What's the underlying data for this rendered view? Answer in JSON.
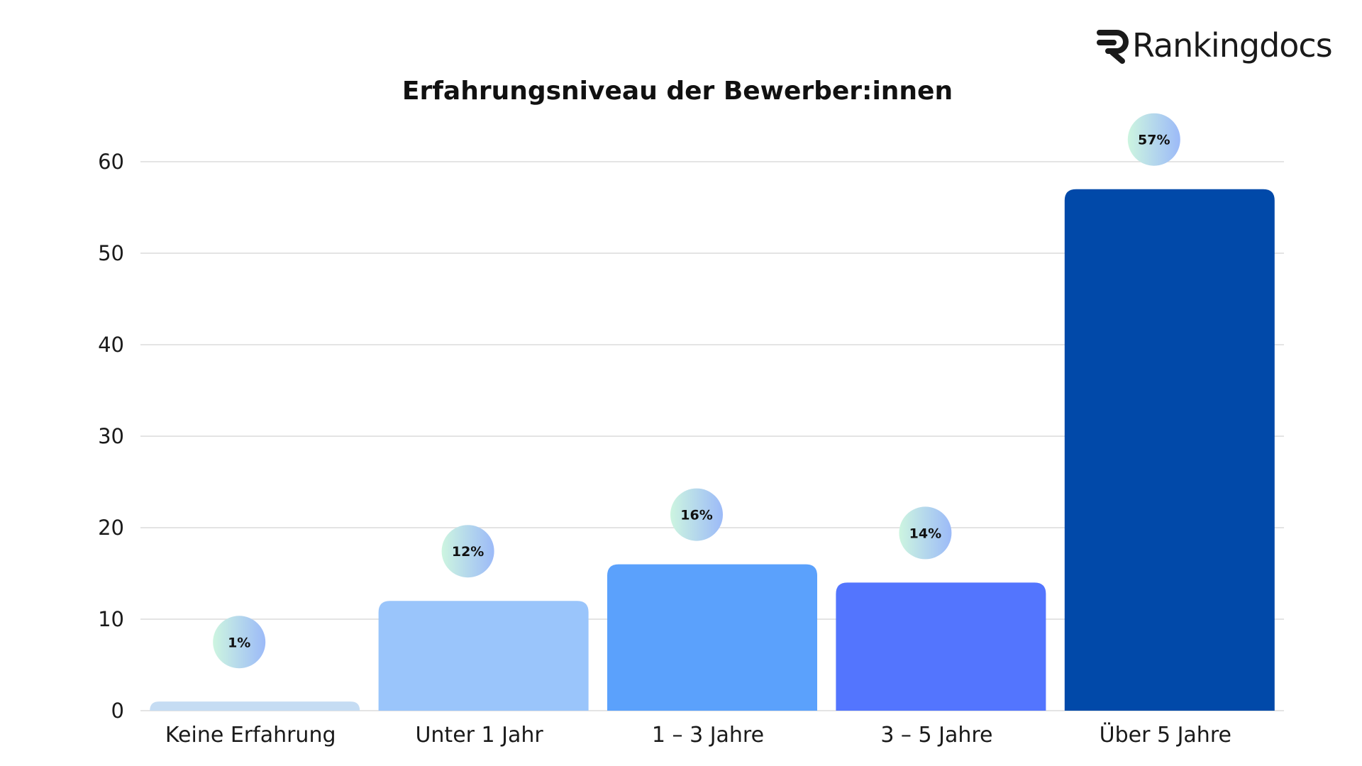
{
  "brand": {
    "name": "Rankingdocs",
    "icon": "rankingdocs-r-logo-icon"
  },
  "chart_data": {
    "type": "bar",
    "title": "Erfahrungsniveau der Bewerber:innen",
    "xlabel": "",
    "ylabel": "",
    "categories": [
      "Keine Erfahrung",
      "Unter 1 Jahr",
      "1 – 3 Jahre",
      "3 – 5 Jahre",
      "Über 5 Jahre"
    ],
    "values": [
      1,
      12,
      16,
      14,
      57
    ],
    "data_labels": [
      "1%",
      "12%",
      "16%",
      "14%",
      "57%"
    ],
    "bar_colors": [
      "#c5dcf3",
      "#9ac5fb",
      "#5ba1fc",
      "#5375fe",
      "#0149a9"
    ],
    "ylim": [
      0,
      60
    ],
    "yticks": [
      0,
      10,
      20,
      30,
      40,
      50,
      60
    ],
    "grid": true,
    "legend": "none"
  },
  "colors": {
    "badge_gradient_start": "#cdf5e0",
    "badge_gradient_end": "#9cbaf8",
    "grid": "#dcdcdc",
    "text": "#1a1a1a"
  }
}
